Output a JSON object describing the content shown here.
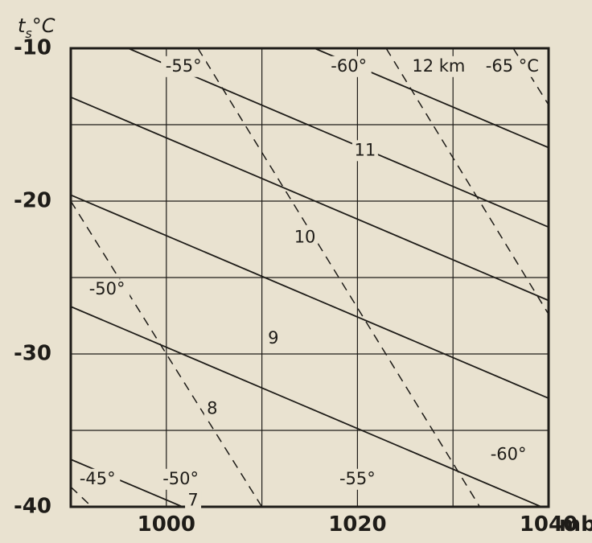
{
  "chart_data": {
    "type": "line",
    "xlabel": "mb",
    "ylabel": "t",
    "ylabel_sub": "s",
    "ylabel_unit": "°C",
    "xlim": [
      990,
      1040
    ],
    "ylim": [
      -40,
      -10
    ],
    "x_ticks": [
      "1000",
      "1020",
      "1040"
    ],
    "y_ticks": [
      "-10",
      "-20",
      "-30",
      "-40"
    ],
    "grid": true,
    "height_lines": [
      {
        "name": "7",
        "points": [
          [
            990,
            -36.9
          ],
          [
            1010,
            -42.2
          ]
        ]
      },
      {
        "name": "8",
        "points": [
          [
            990,
            -26.9
          ],
          [
            1040,
            -40.2
          ]
        ]
      },
      {
        "name": "9",
        "points": [
          [
            990,
            -19.6
          ],
          [
            1040,
            -32.9
          ]
        ]
      },
      {
        "name": "10",
        "points": [
          [
            990,
            -13.2
          ],
          [
            1040,
            -26.5
          ]
        ]
      },
      {
        "name": "11",
        "points": [
          [
            996,
            -10.0
          ],
          [
            1040,
            -21.7
          ]
        ]
      },
      {
        "name": "12 km",
        "points": [
          [
            1015.5,
            -10.0
          ],
          [
            1040,
            -16.5
          ]
        ]
      }
    ],
    "height_labels": [
      {
        "text": "12 km",
        "x": 1028.5,
        "y": -11.2
      },
      {
        "text": "11",
        "x": 1020.8,
        "y": -16.7
      },
      {
        "text": "10",
        "x": 1014.5,
        "y": -22.4
      },
      {
        "text": "9",
        "x": 1011.2,
        "y": -29.0
      },
      {
        "text": "8",
        "x": 1004.8,
        "y": -33.6
      },
      {
        "text": "7",
        "x": 1002.8,
        "y": -39.6
      }
    ],
    "temperature_lines": [
      {
        "name": "-45°",
        "points": [
          [
            990,
            -38.7
          ],
          [
            992.2,
            -40.0
          ]
        ]
      },
      {
        "name": "-50°",
        "points": [
          [
            990,
            -20.0
          ],
          [
            1010,
            -40.0
          ]
        ]
      },
      {
        "name": "-55°",
        "points": [
          [
            1003.3,
            -10.0
          ],
          [
            1032.8,
            -40.0
          ]
        ]
      },
      {
        "name": "-60°",
        "points": [
          [
            1023,
            -10.0
          ],
          [
            1040,
            -27.4
          ]
        ]
      },
      {
        "name": "-65°",
        "points": [
          [
            1036.3,
            -10.0
          ],
          [
            1040,
            -13.7
          ]
        ]
      }
    ],
    "temperature_labels": [
      {
        "text": "-55°",
        "x": 1001.8,
        "y": -11.2
      },
      {
        "text": "-60°",
        "x": 1019.1,
        "y": -11.2
      },
      {
        "text": "-65 °C",
        "x": 1036.2,
        "y": -11.2
      },
      {
        "text": "-50°",
        "x": 993.8,
        "y": -25.8
      },
      {
        "text": "-60°",
        "x": 1035.8,
        "y": -36.6
      },
      {
        "text": "-50°",
        "x": 1001.5,
        "y": -38.2
      },
      {
        "text": "-55°",
        "x": 1020.0,
        "y": -38.2
      },
      {
        "text": "-45°",
        "x": 992.8,
        "y": -38.2
      }
    ]
  }
}
